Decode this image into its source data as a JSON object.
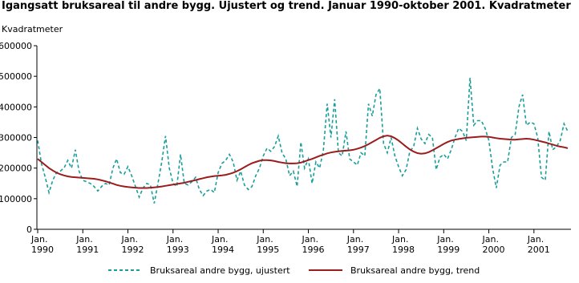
{
  "chart_data": {
    "type": "line",
    "title": "Igangsatt bruksareal til andre bygg. Ujustert og trend. Januar 1990-oktober 2001. Kvadratmeter",
    "y_label": "Kvadratmeter",
    "categories": [
      "Jan. 1990",
      null,
      null,
      null,
      null,
      null,
      null,
      null,
      null,
      null,
      null,
      null,
      "Jan. 1991",
      null,
      null,
      null,
      null,
      null,
      null,
      null,
      null,
      null,
      null,
      null,
      "Jan. 1992",
      null,
      null,
      null,
      null,
      null,
      null,
      null,
      null,
      null,
      null,
      null,
      "Jan. 1993",
      null,
      null,
      null,
      null,
      null,
      null,
      null,
      null,
      null,
      null,
      null,
      "Jan. 1994",
      null,
      null,
      null,
      null,
      null,
      null,
      null,
      null,
      null,
      null,
      null,
      "Jan. 1995",
      null,
      null,
      null,
      null,
      null,
      null,
      null,
      null,
      null,
      null,
      null,
      "Jan. 1996",
      null,
      null,
      null,
      null,
      null,
      null,
      null,
      null,
      null,
      null,
      null,
      "Jan. 1997",
      null,
      null,
      null,
      null,
      null,
      null,
      null,
      null,
      null,
      null,
      null,
      "Jan. 1998",
      null,
      null,
      null,
      null,
      null,
      null,
      null,
      null,
      null,
      null,
      null,
      "Jan. 1999",
      null,
      null,
      null,
      null,
      null,
      null,
      null,
      null,
      null,
      null,
      null,
      "Jan. 2000",
      null,
      null,
      null,
      null,
      null,
      null,
      null,
      null,
      null,
      null,
      null,
      "Jan. 2001",
      null,
      null,
      null,
      null,
      null,
      null,
      null,
      null,
      null
    ],
    "ylim": [
      0,
      600000
    ],
    "yticks": [
      0,
      100000,
      200000,
      300000,
      400000,
      500000,
      600000
    ],
    "series": [
      {
        "name": "Bruksareal andre bygg, ujustert",
        "color": "#1a9e9a",
        "line_style": "dashed",
        "values": [
          290000,
          215000,
          170000,
          120000,
          160000,
          185000,
          190000,
          200000,
          225000,
          200000,
          260000,
          190000,
          160000,
          155000,
          150000,
          140000,
          125000,
          140000,
          150000,
          145000,
          200000,
          230000,
          185000,
          180000,
          205000,
          175000,
          140000,
          105000,
          135000,
          150000,
          145000,
          85000,
          150000,
          220000,
          305000,
          200000,
          150000,
          140000,
          245000,
          150000,
          145000,
          155000,
          170000,
          130000,
          110000,
          125000,
          130000,
          120000,
          185000,
          215000,
          225000,
          245000,
          220000,
          160000,
          190000,
          145000,
          130000,
          140000,
          175000,
          200000,
          240000,
          265000,
          255000,
          270000,
          305000,
          250000,
          230000,
          175000,
          190000,
          140000,
          285000,
          200000,
          230000,
          150000,
          220000,
          200000,
          260000,
          410000,
          300000,
          425000,
          250000,
          240000,
          320000,
          230000,
          220000,
          210000,
          250000,
          240000,
          410000,
          370000,
          440000,
          460000,
          280000,
          250000,
          300000,
          240000,
          205000,
          175000,
          195000,
          255000,
          270000,
          330000,
          295000,
          280000,
          310000,
          300000,
          195000,
          235000,
          245000,
          230000,
          260000,
          300000,
          330000,
          320000,
          290000,
          495000,
          340000,
          355000,
          355000,
          330000,
          290000,
          200000,
          135000,
          210000,
          220000,
          220000,
          300000,
          310000,
          400000,
          440000,
          340000,
          350000,
          345000,
          300000,
          170000,
          160000,
          320000,
          260000,
          270000,
          290000,
          345000,
          320000
        ]
      },
      {
        "name": "Bruksareal andre bygg, trend",
        "color": "#9b1c1c",
        "line_style": "solid",
        "values": [
          230000,
          220000,
          210000,
          200000,
          192000,
          185000,
          180000,
          176000,
          173000,
          171000,
          170000,
          169000,
          168000,
          167000,
          166000,
          165000,
          163000,
          160000,
          157000,
          153000,
          149000,
          145000,
          142000,
          140000,
          138000,
          137000,
          136000,
          135000,
          135000,
          135000,
          136000,
          137000,
          138000,
          140000,
          142000,
          144000,
          146000,
          148000,
          150000,
          152000,
          155000,
          158000,
          161000,
          164000,
          167000,
          170000,
          172000,
          174000,
          175000,
          176000,
          178000,
          181000,
          185000,
          190000,
          196000,
          203000,
          210000,
          216000,
          220000,
          224000,
          226000,
          226000,
          225000,
          223000,
          220000,
          218000,
          216000,
          215000,
          215000,
          216000,
          218000,
          222000,
          226000,
          230000,
          235000,
          240000,
          244000,
          248000,
          251000,
          253000,
          255000,
          256000,
          257000,
          258000,
          260000,
          263000,
          267000,
          272000,
          278000,
          285000,
          292000,
          299000,
          304000,
          306000,
          304000,
          298000,
          290000,
          280000,
          270000,
          261000,
          254000,
          249000,
          247000,
          248000,
          252000,
          258000,
          265000,
          272000,
          279000,
          285000,
          290000,
          293000,
          295000,
          297000,
          299000,
          300000,
          301000,
          302000,
          303000,
          303000,
          302000,
          300000,
          298000,
          296000,
          295000,
          294000,
          293000,
          293000,
          294000,
          295000,
          296000,
          295000,
          293000,
          290000,
          287000,
          284000,
          280000,
          277000,
          273000,
          270000,
          268000,
          265000
        ]
      }
    ]
  }
}
